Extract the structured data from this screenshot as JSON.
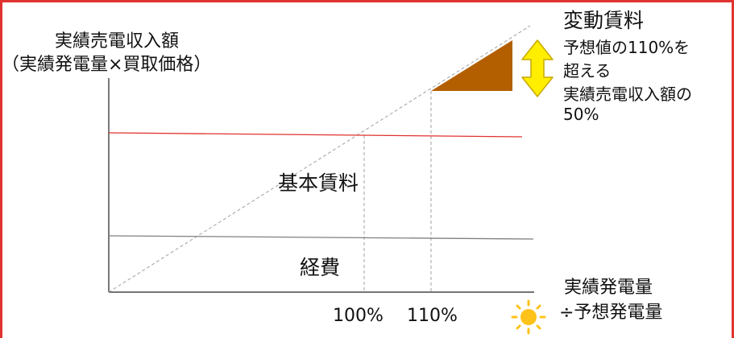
{
  "y_axis_label": {
    "line1": "実績売電収入額",
    "line2": "（実績発電量×買取価格）"
  },
  "x_axis_label": {
    "line1": "実績発電量",
    "line2": "÷予想発電量"
  },
  "regions": {
    "base_fee": "基本賃料",
    "expenses": "経費"
  },
  "variable_fee": {
    "title": "変動賃料",
    "line1": "予想値の110%を",
    "line2": "超える",
    "line3": "実績売電収入額の",
    "line4": "50%"
  },
  "ticks": {
    "t100": "100%",
    "t110": "110%"
  },
  "icons": {
    "double_arrow": "double-headed-vertical-arrow",
    "sun": "sun"
  },
  "colors": {
    "border": "#e0322f",
    "base_fee_line": "#e0322f",
    "expenses_line": "#808080",
    "variable_fee_fill": "#b35f00",
    "arrow_fill": "#ffee00",
    "arrow_stroke": "#c9a800",
    "sun": "#ffc21a"
  }
}
